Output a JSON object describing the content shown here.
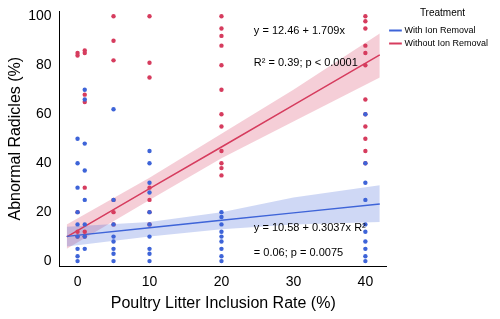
{
  "chart_data": {
    "type": "scatter",
    "xlabel": "Poultry Litter Inclusion Rate (%)",
    "ylabel": "Abnormal Radicles (%)",
    "xlim": [
      -2.5,
      43
    ],
    "xticks": [
      0,
      10,
      20,
      30,
      40
    ],
    "ylim": [
      -2,
      102
    ],
    "yticks": [
      0,
      20,
      40,
      60,
      80,
      100
    ],
    "grid": false,
    "legend": "right",
    "legend_title": "Treatment",
    "annotations": [
      "y = 12.46 + 1.709x",
      "R² = 0.39; p < 0.0001",
      "y = 10.58 + 0.3037x R²",
      "= 0.06; p = 0.0075"
    ],
    "series": [
      {
        "name": "With Ion Removal",
        "color": "#3e64d8",
        "marker": "circle",
        "x": [
          0,
          0,
          0,
          0,
          0,
          0,
          0,
          0,
          0,
          1,
          1,
          1,
          1,
          1,
          1,
          1,
          1,
          5,
          5,
          5,
          5,
          5,
          5,
          5,
          5,
          10,
          10,
          10,
          10,
          10,
          10,
          10,
          10,
          10,
          10,
          20,
          20,
          20,
          20,
          20,
          20,
          20,
          20,
          20,
          40,
          40,
          40,
          40,
          40,
          40,
          40,
          40,
          40,
          40
        ],
        "values": [
          50,
          40,
          30,
          20,
          15,
          10,
          5,
          2,
          0,
          70,
          66,
          48,
          37,
          25,
          15,
          10,
          5,
          62,
          25,
          15,
          10,
          8,
          5,
          3,
          0,
          45,
          40,
          32,
          28,
          20,
          15,
          10,
          5,
          3,
          0,
          20,
          18,
          15,
          12,
          10,
          8,
          5,
          2,
          0,
          60,
          40,
          32,
          25,
          15,
          12,
          8,
          5,
          2,
          0
        ],
        "fit": {
          "line_style": "solid",
          "x": [
            -1.5,
            10,
            20,
            30,
            42
          ],
          "values": [
            10.1,
            13.6,
            16.7,
            19.7,
            23.3
          ],
          "lower": [
            6,
            10,
            13,
            15,
            16
          ],
          "upper": [
            14,
            16,
            20,
            26,
            31
          ]
        }
      },
      {
        "name": "Without Ion Removal",
        "color": "#d63c5e",
        "marker": "circle",
        "x": [
          0,
          0,
          0,
          0,
          0,
          1,
          1,
          1,
          1,
          1,
          1,
          1,
          5,
          5,
          5,
          5,
          5,
          5,
          10,
          10,
          10,
          10,
          10,
          10,
          10,
          20,
          20,
          20,
          20,
          20,
          20,
          20,
          20,
          20,
          20,
          20,
          20,
          40,
          40,
          40,
          40,
          40,
          40,
          40,
          40,
          40,
          40,
          40,
          40
        ],
        "values": [
          84,
          85,
          12,
          10,
          20,
          86,
          85,
          68,
          65,
          30,
          10,
          12,
          100,
          82,
          90,
          25,
          20,
          15,
          100,
          81,
          75,
          30,
          25,
          20,
          15,
          100,
          95,
          92,
          88,
          80,
          70,
          60,
          55,
          45,
          40,
          38,
          35,
          100,
          98,
          95,
          88,
          85,
          80,
          66,
          60,
          55,
          50,
          45,
          40
        ],
        "fit": {
          "line_style": "solid",
          "x": [
            -1.5,
            10,
            20,
            30,
            42
          ],
          "values": [
            9.9,
            29.6,
            46.6,
            63.7,
            84.2
          ],
          "lower": [
            5,
            25,
            42,
            57,
            75
          ],
          "upper": [
            15,
            34,
            52,
            70,
            93
          ]
        }
      }
    ]
  }
}
